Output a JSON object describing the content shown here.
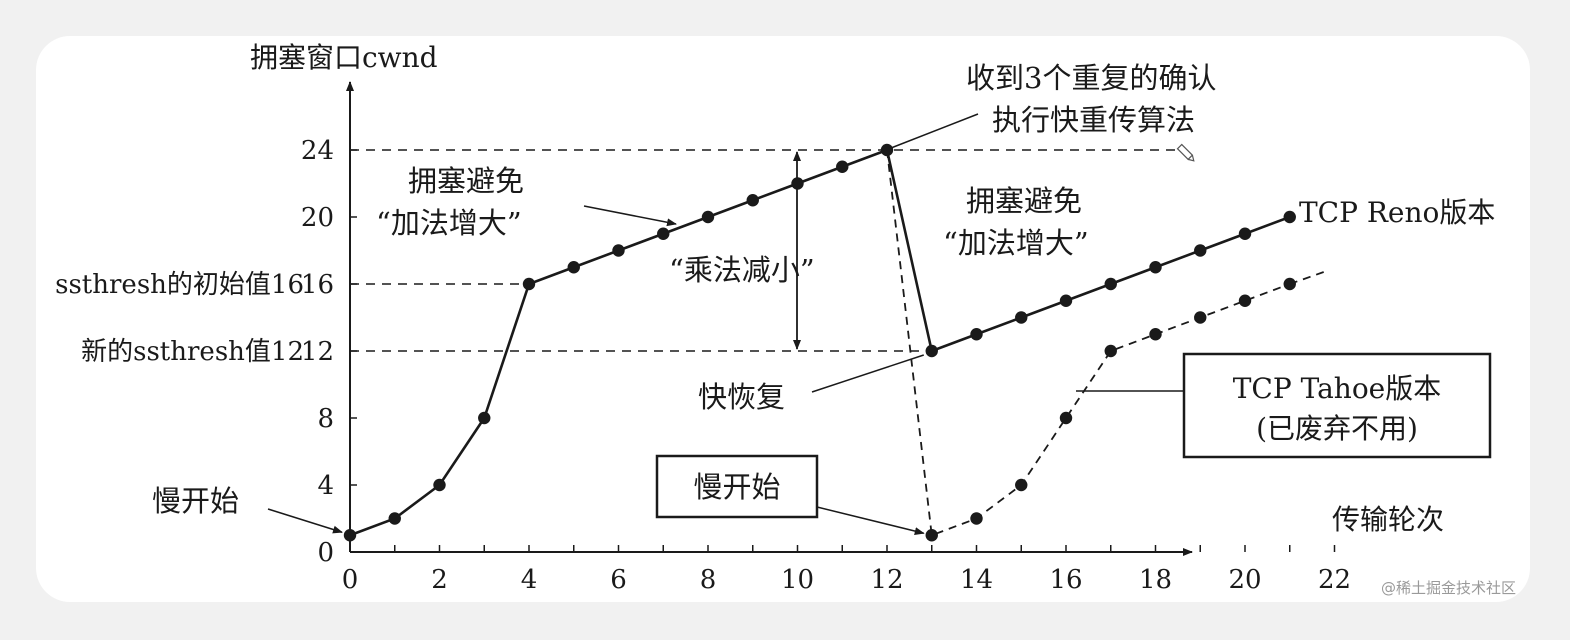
{
  "chart_data": {
    "type": "line",
    "ylabel": "拥塞窗口cwnd",
    "xlabel": "传输轮次",
    "xlim": [
      0,
      22
    ],
    "ylim": [
      0,
      24
    ],
    "x_ticks": [
      0,
      2,
      4,
      6,
      8,
      10,
      12,
      14,
      16,
      18,
      20,
      22
    ],
    "y_ticks": [
      0,
      4,
      8,
      12,
      16,
      20,
      24
    ],
    "ref_lines": [
      {
        "y": 16,
        "label": "ssthresh的初始值16"
      },
      {
        "y": 12,
        "label": "新的ssthresh值12"
      },
      {
        "y": 24,
        "label": ""
      }
    ],
    "series": [
      {
        "name": "TCP Reno版本",
        "style": "solid",
        "x": [
          0,
          1,
          2,
          3,
          4,
          5,
          6,
          7,
          8,
          9,
          10,
          11,
          12,
          13,
          14,
          15,
          16,
          17,
          18,
          19,
          20,
          21
        ],
        "y": [
          1,
          2,
          4,
          8,
          16,
          17,
          18,
          19,
          20,
          21,
          22,
          23,
          24,
          12,
          13,
          14,
          15,
          16,
          17,
          18,
          19,
          20
        ]
      },
      {
        "name": "TCP Tahoe版本 (已废弃不用)",
        "style": "dashed",
        "x": [
          12,
          13,
          14,
          15,
          16,
          17,
          18,
          19,
          20,
          21
        ],
        "y": [
          24,
          1,
          2,
          4,
          8,
          12,
          13,
          14,
          15,
          16
        ]
      }
    ],
    "annotations": {
      "slow_start_1": "慢开始",
      "slow_start_2": "慢开始",
      "ca1_line1": "拥塞避免",
      "ca1_line2": "“加法增大”",
      "ca2_line1": "拥塞避免",
      "ca2_line2": "“加法增大”",
      "md": "“乘法减小”",
      "dupack_line1": "收到3个重复的确认",
      "dupack_line2": "执行快重传算法",
      "fast_recovery": "快恢复",
      "reno_label": "TCP Reno版本",
      "tahoe_line1": "TCP Tahoe版本",
      "tahoe_line2": "(已废弃不用)"
    }
  },
  "watermark": "@稀土掘金技术社区"
}
